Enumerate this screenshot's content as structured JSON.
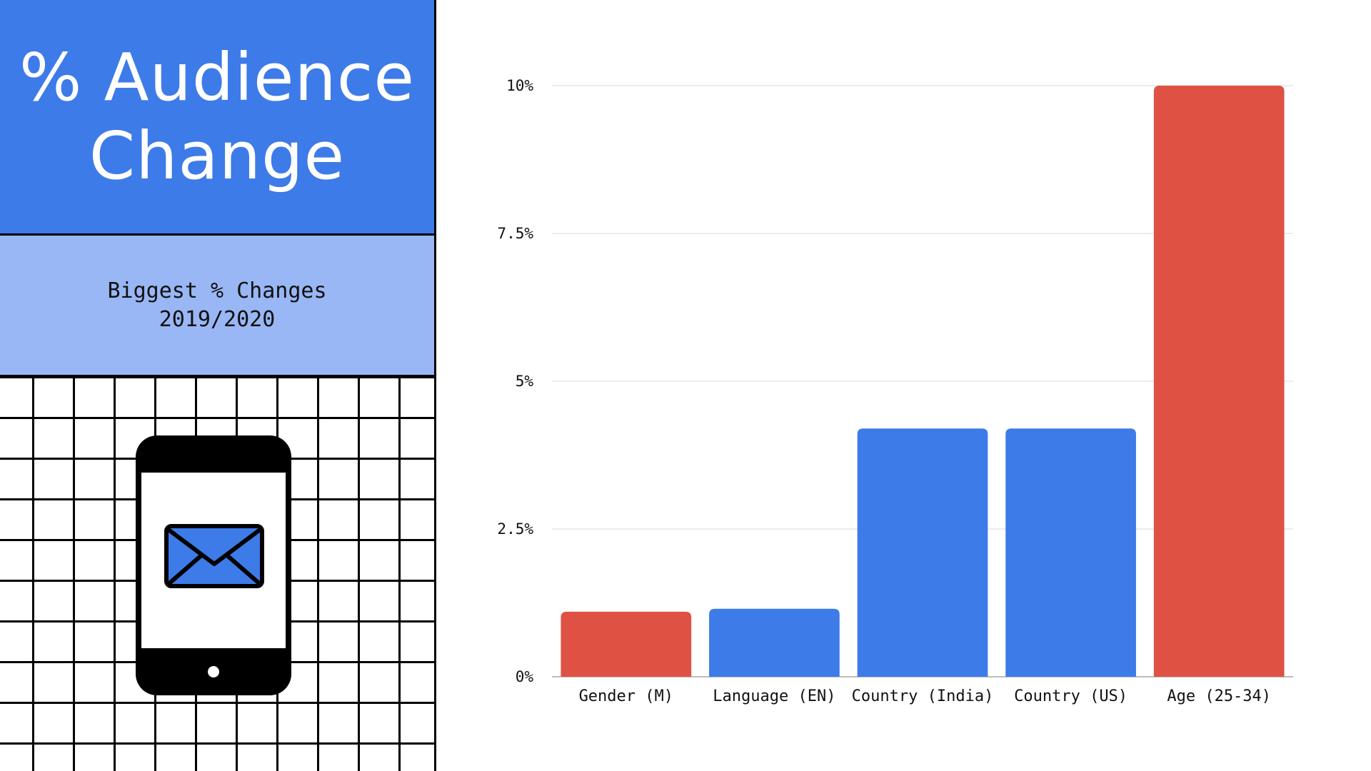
{
  "header": {
    "title_line1": "% Audience",
    "title_line2": "Change",
    "subtitle_line1": "Biggest % Changes",
    "subtitle_line2": "2019/2020"
  },
  "illustration": {
    "device_icon": "smartphone-icon",
    "message_icon": "envelope-icon"
  },
  "colors": {
    "primary_blue": "#3d7be8",
    "light_blue": "#99b7f5",
    "highlight_red": "#df5143"
  },
  "chart_data": {
    "type": "bar",
    "categories": [
      "Gender (M)",
      "Language (EN)",
      "Country (India)",
      "Country (US)",
      "Age (25-34)"
    ],
    "values": [
      1.1,
      1.15,
      4.2,
      4.2,
      10.0
    ],
    "bar_colors": [
      "#df5143",
      "#3d7be8",
      "#3d7be8",
      "#3d7be8",
      "#df5143"
    ],
    "ylim": [
      0,
      10
    ],
    "yticks": [
      0,
      2.5,
      5,
      7.5,
      10
    ],
    "ytick_labels": [
      "0%",
      "2.5%",
      "5%",
      "7.5%",
      "10%"
    ],
    "grid": true,
    "xlabel": "",
    "ylabel": ""
  }
}
